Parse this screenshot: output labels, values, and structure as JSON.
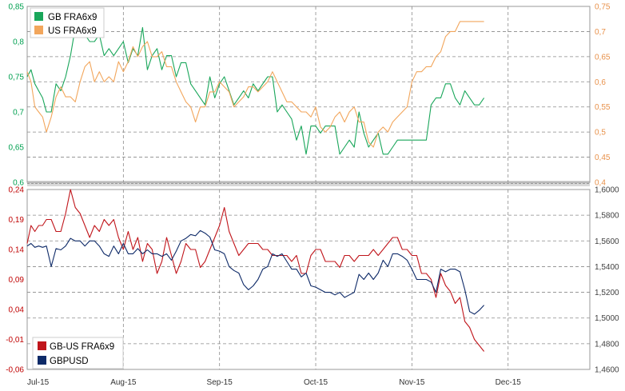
{
  "chart_data": [
    {
      "type": "line",
      "panel": "top",
      "legend_placement": "top-left",
      "grid": true,
      "x_ticks": [
        "Jul-15",
        "Aug-15",
        "Sep-15",
        "Oct-15",
        "Nov-15",
        "Dec-15"
      ],
      "x_range": [
        0,
        5.85
      ],
      "left_axis": {
        "ticks": [
          "0,6",
          "0,65",
          "0,7",
          "0,75",
          "0,8",
          "0,85"
        ],
        "range": [
          0.6,
          0.85
        ],
        "color": "#00a050"
      },
      "right_axis": {
        "ticks": [
          "0,4",
          "0,45",
          "0,5",
          "0,55",
          "0,6",
          "0,65",
          "0,7",
          "0,75"
        ],
        "range": [
          0.4,
          0.75
        ],
        "color": "#e8914a"
      },
      "series": [
        {
          "name": "GB FRA6x9",
          "axis": "left",
          "color": "#19a65a",
          "x": [
            0,
            0.04,
            0.08,
            0.12,
            0.16,
            0.2,
            0.25,
            0.3,
            0.35,
            0.4,
            0.45,
            0.5,
            0.55,
            0.6,
            0.65,
            0.7,
            0.75,
            0.8,
            0.85,
            0.9,
            0.95,
            1.0,
            1.05,
            1.1,
            1.15,
            1.2,
            1.25,
            1.3,
            1.35,
            1.4,
            1.45,
            1.5,
            1.55,
            1.6,
            1.65,
            1.7,
            1.75,
            1.8,
            1.85,
            1.9,
            1.95,
            2.0,
            2.05,
            2.1,
            2.15,
            2.2,
            2.25,
            2.3,
            2.35,
            2.4,
            2.45,
            2.5,
            2.55,
            2.6,
            2.65,
            2.7,
            2.75,
            2.8,
            2.85,
            2.9,
            2.95,
            3.0,
            3.05,
            3.1,
            3.15,
            3.2,
            3.25,
            3.3,
            3.35,
            3.4,
            3.45,
            3.5,
            3.55,
            3.6,
            3.65,
            3.7,
            3.75,
            3.8,
            3.85,
            3.9,
            3.95,
            4.0,
            4.05,
            4.1,
            4.15,
            4.2,
            4.25,
            4.3,
            4.35,
            4.4,
            4.45,
            4.5,
            4.55,
            4.6,
            4.65,
            4.7,
            4.75
          ],
          "values": [
            0.75,
            0.76,
            0.74,
            0.73,
            0.72,
            0.7,
            0.7,
            0.74,
            0.73,
            0.75,
            0.78,
            0.82,
            0.84,
            0.81,
            0.8,
            0.8,
            0.81,
            0.78,
            0.79,
            0.78,
            0.79,
            0.8,
            0.77,
            0.79,
            0.78,
            0.82,
            0.76,
            0.78,
            0.79,
            0.76,
            0.78,
            0.78,
            0.75,
            0.77,
            0.77,
            0.74,
            0.73,
            0.72,
            0.71,
            0.75,
            0.72,
            0.74,
            0.75,
            0.73,
            0.71,
            0.72,
            0.73,
            0.72,
            0.74,
            0.73,
            0.74,
            0.75,
            0.75,
            0.7,
            0.71,
            0.7,
            0.69,
            0.66,
            0.68,
            0.64,
            0.68,
            0.68,
            0.67,
            0.68,
            0.68,
            0.68,
            0.64,
            0.65,
            0.66,
            0.65,
            0.7,
            0.67,
            0.65,
            0.66,
            0.67,
            0.64,
            0.64,
            0.65,
            0.66,
            0.66,
            0.66,
            0.66,
            0.66,
            0.66,
            0.66,
            0.71,
            0.72,
            0.72,
            0.74,
            0.74,
            0.72,
            0.71,
            0.73,
            0.72,
            0.71,
            0.71,
            0.72
          ]
        },
        {
          "name": "US FRA6x9",
          "axis": "right",
          "color": "#f2a65c",
          "x": [
            0,
            0.04,
            0.08,
            0.12,
            0.16,
            0.2,
            0.25,
            0.3,
            0.35,
            0.4,
            0.45,
            0.5,
            0.55,
            0.6,
            0.65,
            0.7,
            0.75,
            0.8,
            0.85,
            0.9,
            0.95,
            1.0,
            1.05,
            1.1,
            1.15,
            1.2,
            1.25,
            1.3,
            1.35,
            1.4,
            1.45,
            1.5,
            1.55,
            1.6,
            1.65,
            1.7,
            1.75,
            1.8,
            1.85,
            1.9,
            1.95,
            2.0,
            2.05,
            2.1,
            2.15,
            2.2,
            2.25,
            2.3,
            2.35,
            2.4,
            2.45,
            2.5,
            2.55,
            2.6,
            2.65,
            2.7,
            2.75,
            2.8,
            2.85,
            2.9,
            2.95,
            3.0,
            3.05,
            3.1,
            3.15,
            3.2,
            3.25,
            3.3,
            3.35,
            3.4,
            3.45,
            3.5,
            3.55,
            3.6,
            3.65,
            3.7,
            3.75,
            3.8,
            3.85,
            3.9,
            3.95,
            4.0,
            4.05,
            4.1,
            4.15,
            4.2,
            4.25,
            4.3,
            4.35,
            4.4,
            4.45,
            4.5,
            4.55,
            4.6,
            4.65,
            4.7,
            4.75
          ],
          "values": [
            0.62,
            0.6,
            0.55,
            0.54,
            0.53,
            0.5,
            0.53,
            0.57,
            0.59,
            0.57,
            0.57,
            0.56,
            0.6,
            0.63,
            0.64,
            0.6,
            0.62,
            0.6,
            0.61,
            0.6,
            0.64,
            0.62,
            0.64,
            0.67,
            0.65,
            0.67,
            0.68,
            0.65,
            0.65,
            0.66,
            0.63,
            0.63,
            0.6,
            0.58,
            0.56,
            0.55,
            0.52,
            0.55,
            0.55,
            0.58,
            0.58,
            0.6,
            0.59,
            0.58,
            0.55,
            0.56,
            0.57,
            0.59,
            0.59,
            0.58,
            0.59,
            0.6,
            0.62,
            0.6,
            0.58,
            0.56,
            0.56,
            0.55,
            0.54,
            0.54,
            0.53,
            0.55,
            0.51,
            0.5,
            0.51,
            0.53,
            0.54,
            0.52,
            0.54,
            0.55,
            0.52,
            0.52,
            0.48,
            0.47,
            0.5,
            0.51,
            0.5,
            0.52,
            0.53,
            0.54,
            0.55,
            0.6,
            0.62,
            0.62,
            0.63,
            0.63,
            0.65,
            0.66,
            0.69,
            0.7,
            0.7,
            0.72,
            0.72,
            0.72,
            0.72,
            0.72,
            0.72
          ]
        }
      ]
    },
    {
      "type": "line",
      "panel": "bottom",
      "legend_placement": "bottom-left",
      "grid": true,
      "x_ticks": [
        "Jul-15",
        "Aug-15",
        "Sep-15",
        "Oct-15",
        "Nov-15",
        "Dec-15"
      ],
      "x_range": [
        0,
        5.85
      ],
      "left_axis": {
        "ticks": [
          "-0,06",
          "-0,01",
          "0,04",
          "0,09",
          "0,14",
          "0,19",
          "0,24"
        ],
        "range": [
          -0.06,
          0.24
        ],
        "color": "#c00000"
      },
      "right_axis": {
        "ticks": [
          "1,4600",
          "1,4800",
          "1,5000",
          "1,5200",
          "1,5400",
          "1,5600",
          "1,5800",
          "1,6000"
        ],
        "range": [
          1.46,
          1.6
        ],
        "color": "#404040"
      },
      "series": [
        {
          "name": "GB-US FRA6x9",
          "axis": "left",
          "color": "#c0151b",
          "x": [
            0,
            0.04,
            0.08,
            0.12,
            0.16,
            0.2,
            0.25,
            0.3,
            0.35,
            0.4,
            0.45,
            0.5,
            0.55,
            0.6,
            0.65,
            0.7,
            0.75,
            0.8,
            0.85,
            0.9,
            0.95,
            1.0,
            1.05,
            1.1,
            1.15,
            1.2,
            1.25,
            1.3,
            1.35,
            1.4,
            1.45,
            1.5,
            1.55,
            1.6,
            1.65,
            1.7,
            1.75,
            1.8,
            1.85,
            1.9,
            1.95,
            2.0,
            2.05,
            2.1,
            2.15,
            2.2,
            2.25,
            2.3,
            2.35,
            2.4,
            2.45,
            2.5,
            2.55,
            2.6,
            2.65,
            2.7,
            2.75,
            2.8,
            2.85,
            2.9,
            2.95,
            3.0,
            3.05,
            3.1,
            3.15,
            3.2,
            3.25,
            3.3,
            3.35,
            3.4,
            3.45,
            3.5,
            3.55,
            3.6,
            3.65,
            3.7,
            3.75,
            3.8,
            3.85,
            3.9,
            3.95,
            4.0,
            4.05,
            4.1,
            4.15,
            4.2,
            4.25,
            4.3,
            4.35,
            4.4,
            4.45,
            4.5,
            4.55,
            4.6,
            4.65,
            4.7,
            4.75
          ],
          "values": [
            0.15,
            0.18,
            0.17,
            0.18,
            0.18,
            0.19,
            0.19,
            0.17,
            0.17,
            0.2,
            0.24,
            0.21,
            0.2,
            0.18,
            0.16,
            0.18,
            0.17,
            0.19,
            0.18,
            0.19,
            0.16,
            0.14,
            0.17,
            0.14,
            0.16,
            0.12,
            0.15,
            0.14,
            0.1,
            0.12,
            0.16,
            0.13,
            0.1,
            0.12,
            0.15,
            0.14,
            0.14,
            0.11,
            0.12,
            0.14,
            0.16,
            0.18,
            0.21,
            0.17,
            0.15,
            0.13,
            0.14,
            0.15,
            0.15,
            0.15,
            0.14,
            0.14,
            0.13,
            0.13,
            0.13,
            0.13,
            0.12,
            0.13,
            0.1,
            0.1,
            0.13,
            0.14,
            0.14,
            0.12,
            0.12,
            0.12,
            0.11,
            0.13,
            0.13,
            0.12,
            0.13,
            0.13,
            0.13,
            0.14,
            0.13,
            0.14,
            0.15,
            0.16,
            0.16,
            0.14,
            0.14,
            0.13,
            0.13,
            0.1,
            0.1,
            0.09,
            0.06,
            0.1,
            0.08,
            0.07,
            0.05,
            0.06,
            0.02,
            0.01,
            -0.01,
            -0.02,
            -0.03
          ]
        },
        {
          "name": "GBPUSD",
          "axis": "right",
          "color": "#0e2a68",
          "x": [
            0,
            0.04,
            0.08,
            0.12,
            0.16,
            0.2,
            0.25,
            0.3,
            0.35,
            0.4,
            0.45,
            0.5,
            0.55,
            0.6,
            0.65,
            0.7,
            0.75,
            0.8,
            0.85,
            0.9,
            0.95,
            1.0,
            1.05,
            1.1,
            1.15,
            1.2,
            1.25,
            1.3,
            1.35,
            1.4,
            1.45,
            1.5,
            1.55,
            1.6,
            1.65,
            1.7,
            1.75,
            1.8,
            1.85,
            1.9,
            1.95,
            2.0,
            2.05,
            2.1,
            2.15,
            2.2,
            2.25,
            2.3,
            2.35,
            2.4,
            2.45,
            2.5,
            2.55,
            2.6,
            2.65,
            2.7,
            2.75,
            2.8,
            2.85,
            2.9,
            2.95,
            3.0,
            3.05,
            3.1,
            3.15,
            3.2,
            3.25,
            3.3,
            3.35,
            3.4,
            3.45,
            3.5,
            3.55,
            3.6,
            3.65,
            3.7,
            3.75,
            3.8,
            3.85,
            3.9,
            3.95,
            4.0,
            4.05,
            4.1,
            4.15,
            4.2,
            4.25,
            4.3,
            4.35,
            4.4,
            4.45,
            4.5,
            4.55,
            4.6,
            4.65,
            4.7,
            4.75
          ],
          "values": [
            1.556,
            1.558,
            1.555,
            1.556,
            1.555,
            1.556,
            1.54,
            1.554,
            1.553,
            1.556,
            1.562,
            1.56,
            1.56,
            1.556,
            1.56,
            1.56,
            1.556,
            1.55,
            1.548,
            1.556,
            1.55,
            1.558,
            1.55,
            1.55,
            1.554,
            1.55,
            1.553,
            1.55,
            1.55,
            1.548,
            1.55,
            1.545,
            1.552,
            1.56,
            1.562,
            1.565,
            1.564,
            1.568,
            1.566,
            1.563,
            1.553,
            1.552,
            1.55,
            1.54,
            1.537,
            1.535,
            1.526,
            1.522,
            1.525,
            1.53,
            1.538,
            1.54,
            1.55,
            1.548,
            1.55,
            1.544,
            1.538,
            1.538,
            1.532,
            1.535,
            1.525,
            1.524,
            1.522,
            1.52,
            1.52,
            1.518,
            1.52,
            1.516,
            1.518,
            1.52,
            1.534,
            1.53,
            1.535,
            1.53,
            1.535,
            1.545,
            1.54,
            1.55,
            1.55,
            1.548,
            1.545,
            1.538,
            1.53,
            1.53,
            1.53,
            1.528,
            1.52,
            1.538,
            1.536,
            1.538,
            1.538,
            1.536,
            1.522,
            1.505,
            1.503,
            1.506,
            1.51
          ]
        }
      ]
    }
  ]
}
